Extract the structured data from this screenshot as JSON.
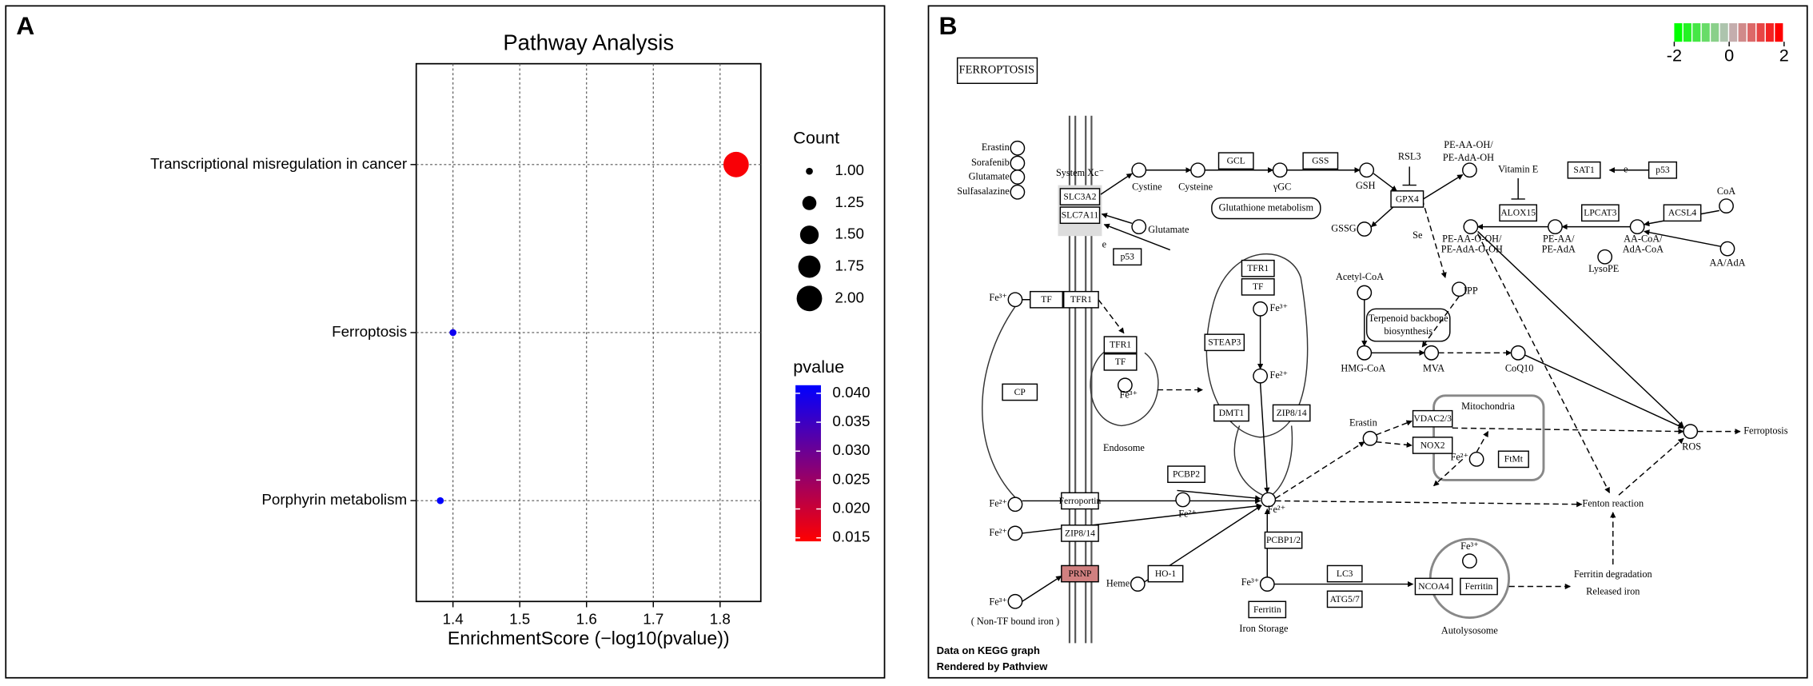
{
  "panel_labels": [
    "A",
    "B"
  ],
  "chart_data": {
    "type": "scatter",
    "title": "Pathway Analysis",
    "x_label": "EnrichmentScore (−log10(pvalue))",
    "categories": [
      "Transcriptional misregulation in cancer",
      "Ferroptosis",
      "Porphyrin metabolism"
    ],
    "x": [
      1.824,
      1.4,
      1.381
    ],
    "sizes": [
      2,
      1,
      1
    ],
    "pvalues": [
      0.015,
      0.0398,
      0.0416
    ],
    "xlim": [
      1.345,
      1.861
    ],
    "xticks": [
      1.4,
      1.5,
      1.6,
      1.7,
      1.8
    ],
    "grid": true,
    "size_legend": {
      "title": "Count",
      "ticks": [
        {
          "value": 1,
          "label": "1.00"
        },
        1.25,
        {
          "value": 1.5,
          "label": "1.50"
        },
        1.75,
        {
          "value": 2,
          "label": "2.00"
        }
      ]
    },
    "color_legend": {
      "title": "pvalue",
      "lim": [
        0.0144,
        0.0414
      ],
      "colors": [
        "#ff0000",
        "#0000ff"
      ],
      "ticks": [
        {
          "value": 0.04,
          "label": "0.040"
        },
        0.035,
        {
          "value": 0.03,
          "label": "0.030"
        },
        0.025,
        {
          "value": 0.02,
          "label": "0.020"
        },
        0.015
      ]
    }
  },
  "diagram": {
    "title": "FERROPTOSIS",
    "color_key": {
      "lim": [
        -2,
        2
      ],
      "ticks": [
        -2,
        0,
        2
      ],
      "colors": [
        "#00ff00",
        "#bebebe",
        "#ff0000"
      ]
    },
    "footer": [
      "Data on KEGG graph",
      "Rendered by Pathview"
    ],
    "genes": [
      "SLC3A2",
      "SLC7A11",
      "p53",
      "GCL",
      "GSS",
      "GPX4",
      "ALOX15",
      "SAT1",
      "p53",
      "LPCAT3",
      "ACSL4",
      "TF",
      "TFR1",
      "TFR1",
      "TF",
      "CP",
      "TFR1",
      "TF",
      "STEAP3",
      "DMT1",
      "ZIP8/14",
      "VDAC2/3",
      "NOX2",
      "FtMt",
      "Ferroportin",
      "PCBP2",
      "ZIP8/14",
      "PRNP",
      "HO-1",
      "PCBP1/2",
      "Ferritin",
      "LC3",
      "ATG5/7",
      "NCOA4",
      "Ferritin"
    ],
    "labels": [
      "Erastin",
      "Sorafenib",
      "Glutamate",
      "Sulfasalazine",
      "System Xc⁻",
      "Cystine",
      "Glutamate",
      "e",
      "Cysteine",
      "γGC",
      "GSH",
      "GSSG",
      "RSL3",
      "Se",
      "PE-AA-OH/",
      "PE-AdA-OH",
      "PE-AA-O-OH/",
      "PE-AdA-O-OH",
      "Vitamin E",
      "e",
      "PE-AA/",
      "PE-AdA",
      "AA-CoA/",
      "AdA-CoA",
      "CoA",
      "AA/AdA",
      "LysoPE",
      "Fe³⁺",
      "Fe³⁺",
      "Endosome",
      "Fe³⁺",
      "Fe²⁺",
      "Acetyl-CoA",
      "Terpenoid backbone",
      "biosynthesis",
      "IPP",
      "HMG-CoA",
      "MVA",
      "CoQ10",
      "Erastin",
      "Mitochondria",
      "Fe²⁺",
      "ROS",
      "Ferroptosis",
      "Fenton reaction",
      "Fe²⁺",
      "Fe²⁺",
      "Fe²⁺",
      "Fe²⁺",
      "Heme",
      "Fe³⁺",
      "( Non-TF bound iron )",
      "Fe³⁺",
      "Iron Storage",
      "Fe³⁺",
      "Autolysosome",
      "Ferritin degradation",
      "Released iron",
      "Glutathione metabolism"
    ]
  }
}
